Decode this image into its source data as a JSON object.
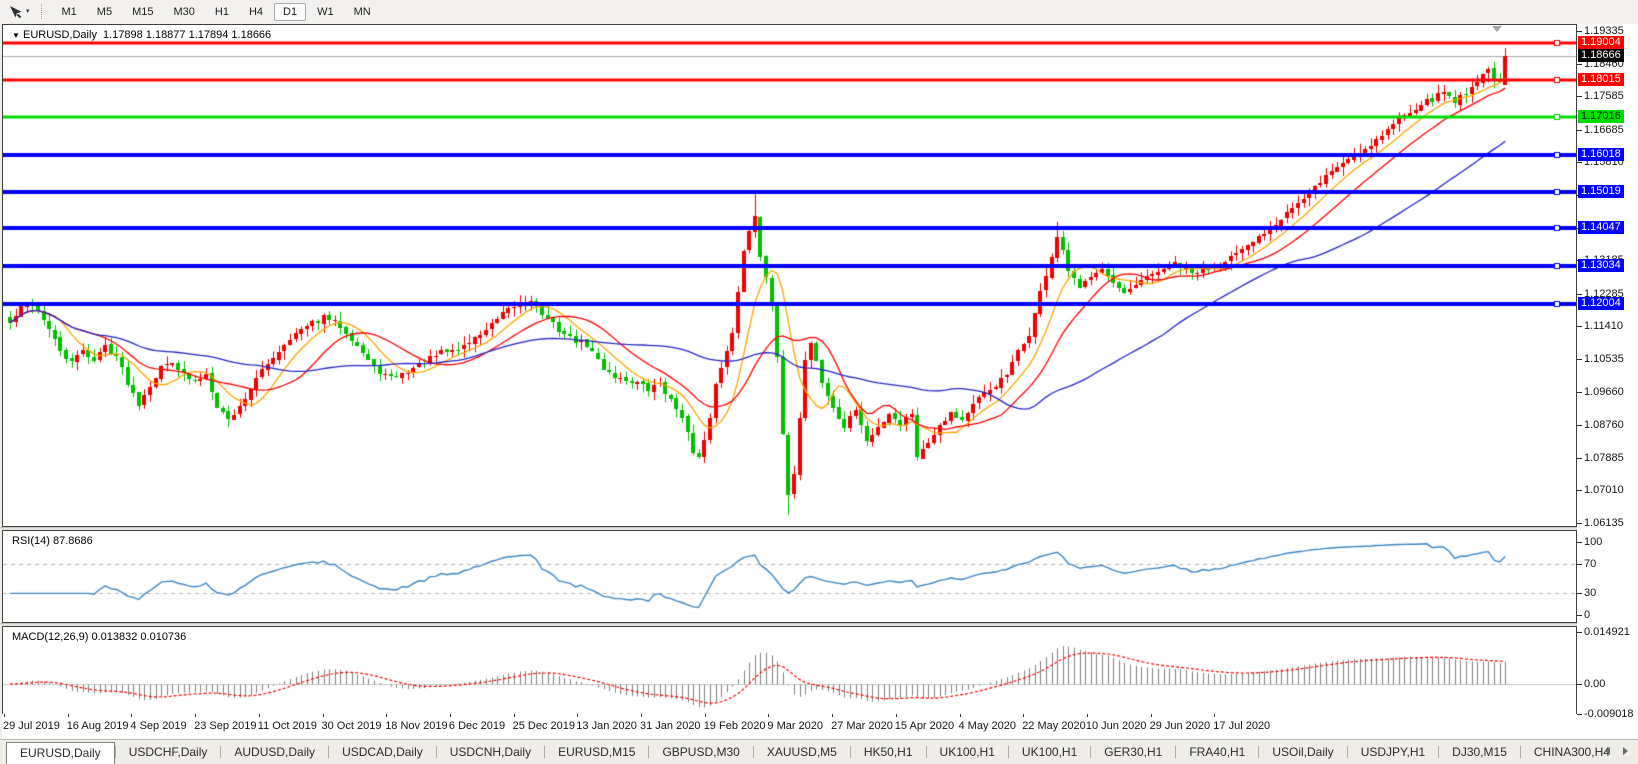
{
  "toolbar": {
    "tool_icon": "cursor-arrow",
    "dropdown_icon": "▾",
    "timeframes": [
      "M1",
      "M5",
      "M15",
      "M30",
      "H1",
      "H4",
      "D1",
      "W1",
      "MN"
    ],
    "active_timeframe": "D1"
  },
  "chart_header": {
    "collapse_icon": "▼",
    "symbol": "EURUSD,Daily",
    "ohlc": "1.17898 1.18877 1.17894 1.18666"
  },
  "price_axis": {
    "ticks": [
      "1.19335",
      "1.18460",
      "1.17585",
      "1.16685",
      "1.15810",
      "1.14935",
      "1.14060",
      "1.13185",
      "1.12285",
      "1.11410",
      "1.10535",
      "1.09660",
      "1.08760",
      "1.07885",
      "1.07010",
      "1.06135"
    ],
    "current_price": {
      "label": "1.18666",
      "value": 1.18666,
      "chip_bg": "#000000",
      "chip_text": "#FFFFFF",
      "line_color": "#ABABAB"
    }
  },
  "levels": [
    {
      "label": "1.19004",
      "value": 1.19004,
      "color": "#FF0000",
      "text_color": "#FFFFFF",
      "width": 3
    },
    {
      "label": "1.18015",
      "value": 1.18015,
      "color": "#FF0000",
      "text_color": "#FFFFFF",
      "width": 3
    },
    {
      "label": "1.17016",
      "value": 1.17016,
      "color": "#00DC00",
      "text_color": "#002B00",
      "width": 3
    },
    {
      "label": "1.16018",
      "value": 1.16018,
      "color": "#0000FF",
      "text_color": "#FFFFFF",
      "width": 4
    },
    {
      "label": "1.15019",
      "value": 1.15019,
      "color": "#0000FF",
      "text_color": "#FFFFFF",
      "width": 4
    },
    {
      "label": "1.14047",
      "value": 1.14047,
      "color": "#0000FF",
      "text_color": "#FFFFFF",
      "width": 4
    },
    {
      "label": "1.13034",
      "value": 1.13034,
      "color": "#0000FF",
      "text_color": "#FFFFFF",
      "width": 4
    },
    {
      "label": "1.12004",
      "value": 1.12004,
      "color": "#0000FF",
      "text_color": "#FFFFFF",
      "width": 4
    }
  ],
  "rsi_pane": {
    "label": "RSI(14) 87.8686",
    "ticks": [
      {
        "v": 100,
        "label": "100"
      },
      {
        "v": 70,
        "label": "70"
      },
      {
        "v": 30,
        "label": "30"
      },
      {
        "v": 0,
        "label": "0"
      }
    ],
    "dashed_levels": [
      70,
      30
    ],
    "line_color": "#3C86C4"
  },
  "macd_pane": {
    "label": "MACD(12,26,9) 0.013832 0.010736",
    "ticks": [
      {
        "v": 0.014921,
        "label": "0.014921"
      },
      {
        "v": 0,
        "label": "0.00"
      },
      {
        "v": -0.009018,
        "label": "-0.009018"
      }
    ],
    "histogram_color": "#7F7F7F",
    "signal_color": "#FF0000"
  },
  "date_axis": [
    "29 Jul 2019",
    "16 Aug 2019",
    "4 Sep 2019",
    "23 Sep 2019",
    "11 Oct 2019",
    "30 Oct 2019",
    "18 Nov 2019",
    "6 Dec 2019",
    "25 Dec 2019",
    "13 Jan 2020",
    "31 Jan 2020",
    "19 Feb 2020",
    "9 Mar 2020",
    "27 Mar 2020",
    "15 Apr 2020",
    "4 May 2020",
    "22 May 2020",
    "10 Jun 2020",
    "29 Jun 2020",
    "17 Jul 2020"
  ],
  "tab_bar": {
    "active": "EURUSD,Daily",
    "tabs": [
      "EURUSD,Daily",
      "USDCHF,Daily",
      "AUDUSD,Daily",
      "USDCAD,Daily",
      "USDCNH,Daily",
      "EURUSD,M15",
      "GBPUSD,M30",
      "XAUUSD,M5",
      "HK50,H1",
      "UK100,H1",
      "UK100,H1",
      "GER30,H1",
      "FRA40,H1",
      "USOil,Daily",
      "USDJPY,H1",
      "DJ30,M15",
      "CHINA300,H4"
    ]
  },
  "chart_data": {
    "type": "candlestick",
    "title": "EURUSD,Daily",
    "ohlc_display": {
      "open": 1.17898,
      "high": 1.18877,
      "low": 1.17894,
      "close": 1.18666
    },
    "bars": 268,
    "axis_top": 1.19335,
    "axis_bottom": 1.06135,
    "up_color": "#F00000",
    "down_color": "#00C000",
    "close_waypoints": [
      [
        0,
        1.115
      ],
      [
        2,
        1.119
      ],
      [
        4,
        1.1205
      ],
      [
        6,
        1.116
      ],
      [
        9,
        1.1075
      ],
      [
        11,
        1.104
      ],
      [
        13,
        1.108
      ],
      [
        15,
        1.105
      ],
      [
        17,
        1.109
      ],
      [
        19,
        1.106
      ],
      [
        21,
        1.099
      ],
      [
        23,
        1.0935
      ],
      [
        25,
        1.0985
      ],
      [
        27,
        1.103
      ],
      [
        29,
        1.105
      ],
      [
        31,
        1.101
      ],
      [
        33,
        1.099
      ],
      [
        35,
        1.1015
      ],
      [
        37,
        1.093
      ],
      [
        39,
        1.089
      ],
      [
        41,
        1.0925
      ],
      [
        44,
        1.1
      ],
      [
        47,
        1.106
      ],
      [
        50,
        1.111
      ],
      [
        53,
        1.114
      ],
      [
        56,
        1.1165
      ],
      [
        59,
        1.1145
      ],
      [
        62,
        1.109
      ],
      [
        65,
        1.103
      ],
      [
        68,
        1.1
      ],
      [
        71,
        1.102
      ],
      [
        74,
        1.1045
      ],
      [
        77,
        1.107
      ],
      [
        80,
        1.108
      ],
      [
        83,
        1.111
      ],
      [
        86,
        1.1145
      ],
      [
        89,
        1.1185
      ],
      [
        91,
        1.1205
      ],
      [
        93,
        1.1215
      ],
      [
        95,
        1.1175
      ],
      [
        97,
        1.1145
      ],
      [
        100,
        1.111
      ],
      [
        103,
        1.109
      ],
      [
        106,
        1.103
      ],
      [
        109,
        1.1
      ],
      [
        112,
        1.099
      ],
      [
        114,
        1.097
      ],
      [
        116,
        1.099
      ],
      [
        118,
        1.094
      ],
      [
        120,
        1.0905
      ],
      [
        122,
        1.08
      ],
      [
        123,
        1.0785
      ],
      [
        124,
        1.083
      ],
      [
        125,
        1.09
      ],
      [
        126,
        1.0985
      ],
      [
        127,
        1.103
      ],
      [
        128,
        1.108
      ],
      [
        129,
        1.113
      ],
      [
        130,
        1.123
      ],
      [
        131,
        1.134
      ],
      [
        132,
        1.14
      ],
      [
        133,
        1.144
      ],
      [
        134,
        1.133
      ],
      [
        135,
        1.128
      ],
      [
        136,
        1.12
      ],
      [
        137,
        1.105
      ],
      [
        138,
        1.085
      ],
      [
        139,
        1.068
      ],
      [
        140,
        1.075
      ],
      [
        141,
        1.09
      ],
      [
        142,
        1.105
      ],
      [
        143,
        1.11
      ],
      [
        144,
        1.105
      ],
      [
        145,
        1.099
      ],
      [
        147,
        1.092
      ],
      [
        149,
        1.087
      ],
      [
        151,
        1.092
      ],
      [
        153,
        1.083
      ],
      [
        155,
        1.087
      ],
      [
        157,
        1.091
      ],
      [
        159,
        1.088
      ],
      [
        161,
        1.091
      ],
      [
        162,
        1.0795
      ],
      [
        163,
        1.081
      ],
      [
        164,
        1.083
      ],
      [
        166,
        1.088
      ],
      [
        168,
        1.091
      ],
      [
        170,
        1.089
      ],
      [
        172,
        1.093
      ],
      [
        174,
        1.096
      ],
      [
        176,
        1.0985
      ],
      [
        178,
        1.101
      ],
      [
        180,
        1.107
      ],
      [
        182,
        1.112
      ],
      [
        184,
        1.123
      ],
      [
        186,
        1.133
      ],
      [
        187,
        1.138
      ],
      [
        188,
        1.134
      ],
      [
        189,
        1.129
      ],
      [
        191,
        1.124
      ],
      [
        193,
        1.128
      ],
      [
        195,
        1.13
      ],
      [
        197,
        1.1255
      ],
      [
        199,
        1.1225
      ],
      [
        201,
        1.125
      ],
      [
        203,
        1.127
      ],
      [
        205,
        1.129
      ],
      [
        208,
        1.131
      ],
      [
        211,
        1.128
      ],
      [
        214,
        1.13
      ],
      [
        217,
        1.132
      ],
      [
        220,
        1.134
      ],
      [
        223,
        1.138
      ],
      [
        226,
        1.142
      ],
      [
        228,
        1.145
      ],
      [
        231,
        1.148
      ],
      [
        234,
        1.153
      ],
      [
        237,
        1.157
      ],
      [
        240,
        1.16
      ],
      [
        243,
        1.163
      ],
      [
        246,
        1.167
      ],
      [
        249,
        1.171
      ],
      [
        252,
        1.174
      ],
      [
        254,
        1.175
      ],
      [
        256,
        1.177
      ],
      [
        258,
        1.1745
      ],
      [
        260,
        1.177
      ],
      [
        262,
        1.18
      ],
      [
        264,
        1.183
      ],
      [
        266,
        1.179
      ],
      [
        267,
        1.18666
      ]
    ],
    "special_bars": {
      "133": {
        "high": 1.1495
      },
      "139": {
        "low": 1.0636
      },
      "187": {
        "high": 1.1422
      },
      "267": {
        "open": 1.17898,
        "high": 1.18877,
        "low": 1.17894,
        "close": 1.18666
      }
    },
    "moving_averages": [
      {
        "period": 8,
        "color": "#FFA500"
      },
      {
        "period": 16,
        "color": "#FF0000"
      },
      {
        "period": 45,
        "color": "#2424C8"
      }
    ],
    "rsi": {
      "period": 14,
      "current": 87.8686
    },
    "macd": {
      "fast": 12,
      "slow": 26,
      "signal": 9,
      "current_main": 0.013832,
      "current_signal": 0.010736
    }
  }
}
